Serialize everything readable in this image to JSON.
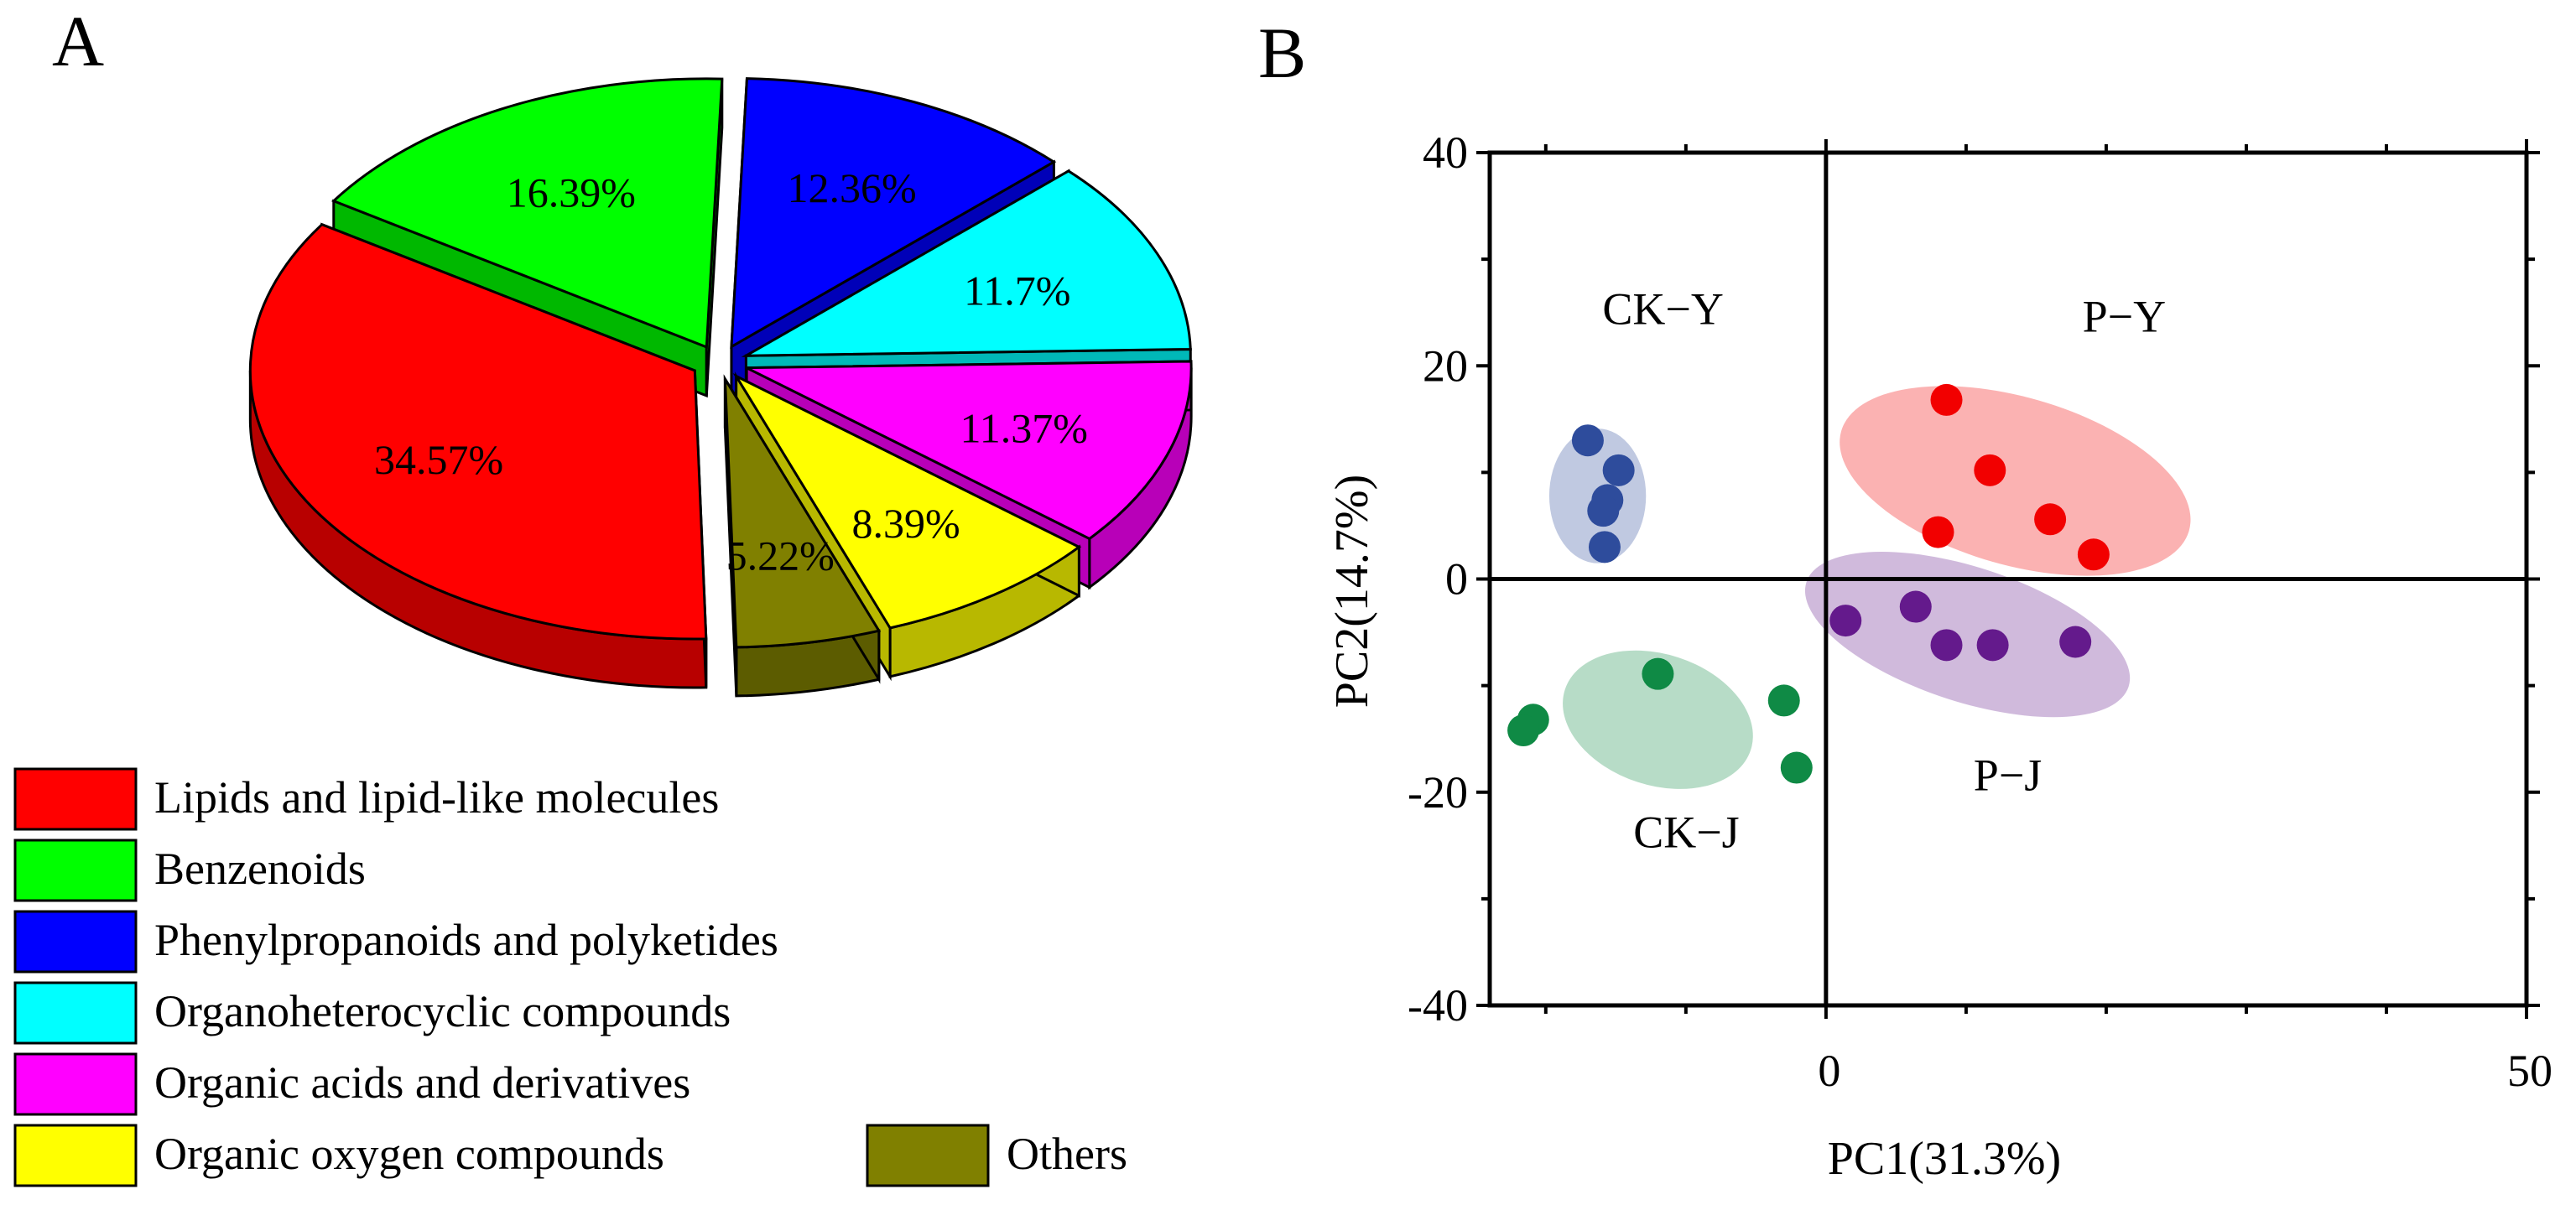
{
  "panel_labels": {
    "a": "A",
    "b": "B"
  },
  "colors": {
    "lipids": "#ff0000",
    "benzenoids": "#00ff00",
    "phenylpropanoids": "#0000ff",
    "organoheterocyclic": "#00ffff",
    "organic_acids": "#ff00ff",
    "organic_oxygen": "#ffff00",
    "others": "#808000",
    "ck_y": "#2e4c9c",
    "p_y": "#f20000",
    "ck_j": "#0f8a45",
    "p_j": "#641a8c"
  },
  "chart_data": [
    {
      "type": "pie",
      "title": "",
      "slices": [
        {
          "key": "phenylpropanoids",
          "label": "Phenylpropanoids and polyketides",
          "value": 12.36,
          "value_label": "12.36%"
        },
        {
          "key": "organoheterocyclic",
          "label": "Organoheterocyclic compounds",
          "value": 11.7,
          "value_label": "11.7%"
        },
        {
          "key": "organic_acids",
          "label": "Organic acids and derivatives",
          "value": 11.37,
          "value_label": "11.37%"
        },
        {
          "key": "organic_oxygen",
          "label": "Organic oxygen compounds",
          "value": 8.39,
          "value_label": "8.39%"
        },
        {
          "key": "others",
          "label": "Others",
          "value": 5.22,
          "value_label": "5.22%"
        },
        {
          "key": "lipids",
          "label": "Lipids and lipid-like molecules",
          "value": 34.57,
          "value_label": "34.57%"
        },
        {
          "key": "benzenoids",
          "label": "Benzenoids",
          "value": 16.39,
          "value_label": "16.39%"
        }
      ],
      "legend": [
        {
          "key": "lipids",
          "label": "Lipids and lipid-like molecules"
        },
        {
          "key": "benzenoids",
          "label": "Benzenoids"
        },
        {
          "key": "phenylpropanoids",
          "label": "Phenylpropanoids and polyketides"
        },
        {
          "key": "organoheterocyclic",
          "label": "Organoheterocyclic compounds"
        },
        {
          "key": "organic_acids",
          "label": "Organic acids and derivatives"
        },
        {
          "key": "organic_oxygen",
          "label": "Organic oxygen compounds"
        },
        {
          "key": "others",
          "label": "Others"
        }
      ]
    },
    {
      "type": "scatter",
      "title": "",
      "xlabel": "PC1(31.3%)",
      "ylabel": "PC2(14.7%)",
      "xlim": [
        -24,
        50
      ],
      "ylim": [
        -40,
        40
      ],
      "x_ticks": [
        0,
        50
      ],
      "y_ticks": [
        40,
        20,
        0,
        -20,
        -40
      ],
      "x_tick_labels": [
        "0",
        "50"
      ],
      "y_tick_labels": [
        "40",
        "20",
        "0",
        "-20",
        "-40"
      ],
      "groups": [
        {
          "key": "ck_y",
          "name": "CK−Y",
          "points": [
            [
              -17,
              13
            ],
            [
              -14.8,
              10.2
            ],
            [
              -15.6,
              7.4
            ],
            [
              -15.9,
              6.4
            ],
            [
              -15.8,
              3.0
            ]
          ],
          "ellipse": {
            "cx": -16.3,
            "cy": 7.8,
            "rx": 4.1,
            "ry": 7.7
          }
        },
        {
          "key": "p_y",
          "name": "P−Y",
          "points": [
            [
              8.6,
              16.8
            ],
            [
              11.7,
              10.2
            ],
            [
              8.0,
              4.4
            ],
            [
              16.0,
              5.6
            ],
            [
              19.1,
              2.3
            ]
          ],
          "ellipse": {
            "cx": 13.5,
            "cy": 9.2,
            "rx": 21.3,
            "ry": 9.6
          }
        },
        {
          "key": "ck_j",
          "name": "CK−J",
          "points": [
            [
              -12.0,
              -8.9
            ],
            [
              -20.9,
              -13.2
            ],
            [
              -21.6,
              -14.2
            ],
            [
              -3.0,
              -11.4
            ],
            [
              -2.1,
              -17.7
            ]
          ],
          "ellipse": {
            "cx": -12.0,
            "cy": -13.2,
            "rx": 10.5,
            "ry": 7.5
          }
        },
        {
          "key": "p_j",
          "name": "P−J",
          "points": [
            [
              1.4,
              -3.9
            ],
            [
              6.4,
              -2.6
            ],
            [
              8.6,
              -6.2
            ],
            [
              11.9,
              -6.2
            ],
            [
              17.8,
              -5.9
            ]
          ],
          "ellipse": {
            "cx": 10.1,
            "cy": -5.2,
            "rx": 19.8,
            "ry": 7.7
          }
        }
      ]
    }
  ]
}
